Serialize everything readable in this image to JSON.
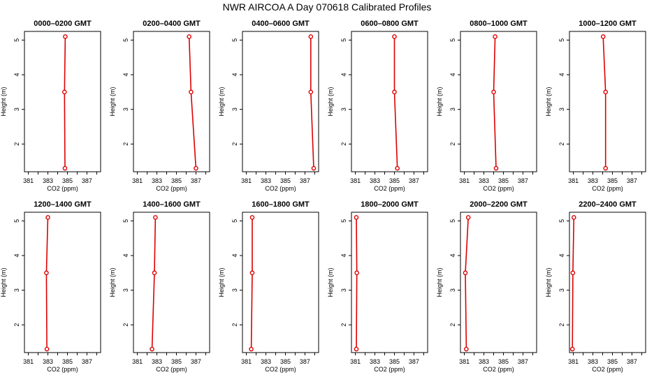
{
  "page": {
    "title": "NWR AIRCOA A  Day 070618  Calibrated Profiles"
  },
  "colors": {
    "profile_line": "#dd0000",
    "marker": "#dd0000",
    "frame": "#000000"
  },
  "chart_data": [
    {
      "type": "line",
      "title": "0000–0200 GMT",
      "xlabel": "CO2 (ppm)",
      "ylabel": "Height (m)",
      "xlim": [
        380.6,
        388.4
      ],
      "ylim": [
        1.2,
        5.25
      ],
      "xticks": [
        "381",
        "383",
        "385",
        "387"
      ],
      "yticks": [
        "2",
        "3",
        "4",
        "5"
      ],
      "series": [
        {
          "x": [
            384.75,
            384.7,
            384.78
          ],
          "y": [
            1.3,
            3.5,
            5.1
          ]
        }
      ]
    },
    {
      "type": "line",
      "title": "0200–0400 GMT",
      "xlabel": "CO2 (ppm)",
      "ylabel": "Height (m)",
      "xlim": [
        380.6,
        388.4
      ],
      "ylim": [
        1.2,
        5.25
      ],
      "xticks": [
        "381",
        "383",
        "385",
        "387"
      ],
      "yticks": [
        "2",
        "3",
        "4",
        "5"
      ],
      "series": [
        {
          "x": [
            387.0,
            386.5,
            386.3
          ],
          "y": [
            1.3,
            3.5,
            5.1
          ]
        }
      ]
    },
    {
      "type": "line",
      "title": "0400–0600 GMT",
      "xlabel": "CO2 (ppm)",
      "ylabel": "Height (m)",
      "xlim": [
        380.6,
        388.4
      ],
      "ylim": [
        1.2,
        5.25
      ],
      "xticks": [
        "381",
        "383",
        "385",
        "387"
      ],
      "yticks": [
        "2",
        "3",
        "4",
        "5"
      ],
      "series": [
        {
          "x": [
            387.9,
            387.6,
            387.6
          ],
          "y": [
            1.3,
            3.5,
            5.1
          ]
        }
      ]
    },
    {
      "type": "line",
      "title": "0600–0800 GMT",
      "xlabel": "CO2 (ppm)",
      "ylabel": "Height (m)",
      "xlim": [
        380.6,
        388.4
      ],
      "ylim": [
        1.2,
        5.25
      ],
      "xticks": [
        "381",
        "383",
        "385",
        "387"
      ],
      "yticks": [
        "2",
        "3",
        "4",
        "5"
      ],
      "series": [
        {
          "x": [
            385.3,
            385.0,
            385.0
          ],
          "y": [
            1.3,
            3.5,
            5.1
          ]
        }
      ]
    },
    {
      "type": "line",
      "title": "0800–1000 GMT",
      "xlabel": "CO2 (ppm)",
      "ylabel": "Height (m)",
      "xlim": [
        380.6,
        388.4
      ],
      "ylim": [
        1.2,
        5.25
      ],
      "xticks": [
        "381",
        "383",
        "385",
        "387"
      ],
      "yticks": [
        "2",
        "3",
        "4",
        "5"
      ],
      "series": [
        {
          "x": [
            384.25,
            384.0,
            384.15
          ],
          "y": [
            1.3,
            3.5,
            5.1
          ]
        }
      ]
    },
    {
      "type": "line",
      "title": "1000–1200 GMT",
      "xlabel": "CO2 (ppm)",
      "ylabel": "Height (m)",
      "xlim": [
        380.6,
        388.4
      ],
      "ylim": [
        1.2,
        5.25
      ],
      "xticks": [
        "381",
        "383",
        "385",
        "387"
      ],
      "yticks": [
        "2",
        "3",
        "4",
        "5"
      ],
      "series": [
        {
          "x": [
            384.3,
            384.3,
            384.05
          ],
          "y": [
            1.3,
            3.5,
            5.1
          ]
        }
      ]
    },
    {
      "type": "line",
      "title": "1200–1400 GMT",
      "xlabel": "CO2 (ppm)",
      "ylabel": "Height (m)",
      "xlim": [
        380.6,
        388.4
      ],
      "ylim": [
        1.2,
        5.25
      ],
      "xticks": [
        "381",
        "383",
        "385",
        "387"
      ],
      "yticks": [
        "2",
        "3",
        "4",
        "5"
      ],
      "series": [
        {
          "x": [
            382.9,
            382.85,
            383.0
          ],
          "y": [
            1.3,
            3.5,
            5.1
          ]
        }
      ]
    },
    {
      "type": "line",
      "title": "1400–1600 GMT",
      "xlabel": "CO2 (ppm)",
      "ylabel": "Height (m)",
      "xlim": [
        380.6,
        388.4
      ],
      "ylim": [
        1.2,
        5.25
      ],
      "xticks": [
        "381",
        "383",
        "385",
        "387"
      ],
      "yticks": [
        "2",
        "3",
        "4",
        "5"
      ],
      "series": [
        {
          "x": [
            382.5,
            382.75,
            382.85
          ],
          "y": [
            1.3,
            3.5,
            5.1
          ]
        }
      ]
    },
    {
      "type": "line",
      "title": "1600–1800 GMT",
      "xlabel": "CO2 (ppm)",
      "ylabel": "Height (m)",
      "xlim": [
        380.6,
        388.4
      ],
      "ylim": [
        1.2,
        5.25
      ],
      "xticks": [
        "381",
        "383",
        "385",
        "387"
      ],
      "yticks": [
        "2",
        "3",
        "4",
        "5"
      ],
      "series": [
        {
          "x": [
            381.5,
            381.6,
            381.6
          ],
          "y": [
            1.3,
            3.5,
            5.1
          ]
        }
      ]
    },
    {
      "type": "line",
      "title": "1800–2000 GMT",
      "xlabel": "CO2 (ppm)",
      "ylabel": "Height (m)",
      "xlim": [
        380.6,
        388.4
      ],
      "ylim": [
        1.2,
        5.25
      ],
      "xticks": [
        "381",
        "383",
        "385",
        "387"
      ],
      "yticks": [
        "2",
        "3",
        "4",
        "5"
      ],
      "series": [
        {
          "x": [
            381.1,
            381.15,
            381.1
          ],
          "y": [
            1.3,
            3.5,
            5.1
          ]
        }
      ]
    },
    {
      "type": "line",
      "title": "2000–2200 GMT",
      "xlabel": "CO2 (ppm)",
      "ylabel": "Height (m)",
      "xlim": [
        380.6,
        388.4
      ],
      "ylim": [
        1.2,
        5.25
      ],
      "xticks": [
        "381",
        "383",
        "385",
        "387"
      ],
      "yticks": [
        "2",
        "3",
        "4",
        "5"
      ],
      "series": [
        {
          "x": [
            381.2,
            381.1,
            381.4
          ],
          "y": [
            1.3,
            3.5,
            5.1
          ]
        }
      ]
    },
    {
      "type": "line",
      "title": "2200–2400 GMT",
      "xlabel": "CO2 (ppm)",
      "ylabel": "Height (m)",
      "xlim": [
        380.6,
        388.4
      ],
      "ylim": [
        1.2,
        5.25
      ],
      "xticks": [
        "381",
        "383",
        "385",
        "387"
      ],
      "yticks": [
        "2",
        "3",
        "4",
        "5"
      ],
      "series": [
        {
          "x": [
            380.9,
            380.95,
            381.05
          ],
          "y": [
            1.3,
            3.5,
            5.1
          ]
        }
      ]
    }
  ]
}
